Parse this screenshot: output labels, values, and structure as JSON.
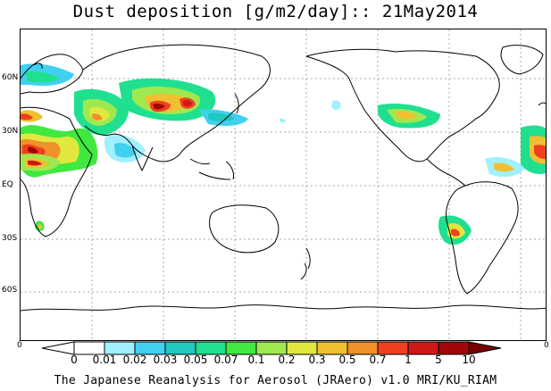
{
  "title": "Dust deposition [g/m2/day]:: 21May2014",
  "map": {
    "lat_labels": [
      "60N",
      "30N",
      "EQ",
      "30S",
      "60S"
    ],
    "edge_labels": [
      "0",
      "0"
    ],
    "grid": "dotted"
  },
  "colorbar": {
    "levels": [
      "0",
      "0.01",
      "0.02",
      "0.03",
      "0.05",
      "0.07",
      "0.1",
      "0.2",
      "0.3",
      "0.5",
      "0.7",
      "1",
      "5",
      "10"
    ],
    "colors": [
      "#ffffff",
      "#a0f0ff",
      "#40d0f0",
      "#20c8c0",
      "#20e090",
      "#40e840",
      "#a0e850",
      "#e0e840",
      "#f0c030",
      "#f09028",
      "#f04020",
      "#d01818",
      "#a00808",
      "#780000"
    ]
  },
  "footer": "The Japanese Reanalysis for Aerosol (JRAero) v1.0 MRI/KU_RIAM"
}
